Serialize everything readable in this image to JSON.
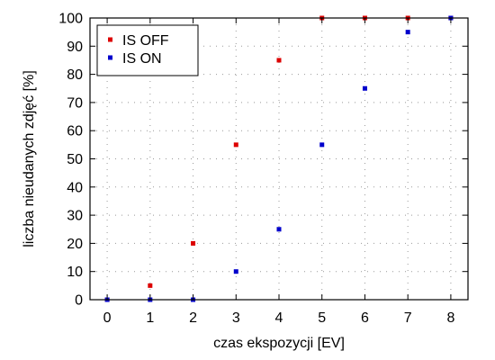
{
  "chart_data": {
    "type": "scatter",
    "title": "",
    "xlabel": "czas ekspozycji [EV]",
    "ylabel": "liczba nieudanych zdjęć [%]",
    "xlim": [
      -0.4,
      8.4
    ],
    "ylim": [
      0,
      100
    ],
    "xticks": [
      0,
      1,
      2,
      3,
      4,
      5,
      6,
      7,
      8
    ],
    "yticks": [
      0,
      10,
      20,
      30,
      40,
      50,
      60,
      70,
      80,
      90,
      100
    ],
    "grid": true,
    "legend_position": "top-left",
    "series": [
      {
        "name": "IS OFF",
        "color": "#dd0000",
        "marker": "square",
        "x": [
          0,
          1,
          2,
          3,
          4,
          5,
          6,
          7,
          8
        ],
        "y": [
          0,
          5,
          20,
          55,
          85,
          100,
          100,
          100,
          100
        ]
      },
      {
        "name": "IS ON",
        "color": "#0000cc",
        "marker": "square",
        "x": [
          0,
          1,
          2,
          3,
          4,
          5,
          6,
          7,
          8
        ],
        "y": [
          0,
          0,
          0,
          10,
          25,
          55,
          75,
          95,
          100
        ]
      }
    ]
  }
}
